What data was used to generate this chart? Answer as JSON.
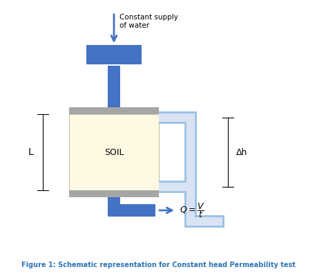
{
  "fig_width": 4.59,
  "fig_height": 3.96,
  "dpi": 100,
  "bg_color": "#ffffff",
  "blue_dark": "#4472c4",
  "blue_light": "#dae3f3",
  "blue_pipe_border": "#9dc3e6",
  "gray": "#a6a6a6",
  "soil_fill": "#fef9e3",
  "caption_color": "#2e75b6",
  "caption": "Figure 1: Schematic representation for Constant head Permeability test",
  "soil_label": "SOIL",
  "L_label": "L",
  "dh_label": "Δh",
  "arrow_label": "Constant supply\nof water"
}
